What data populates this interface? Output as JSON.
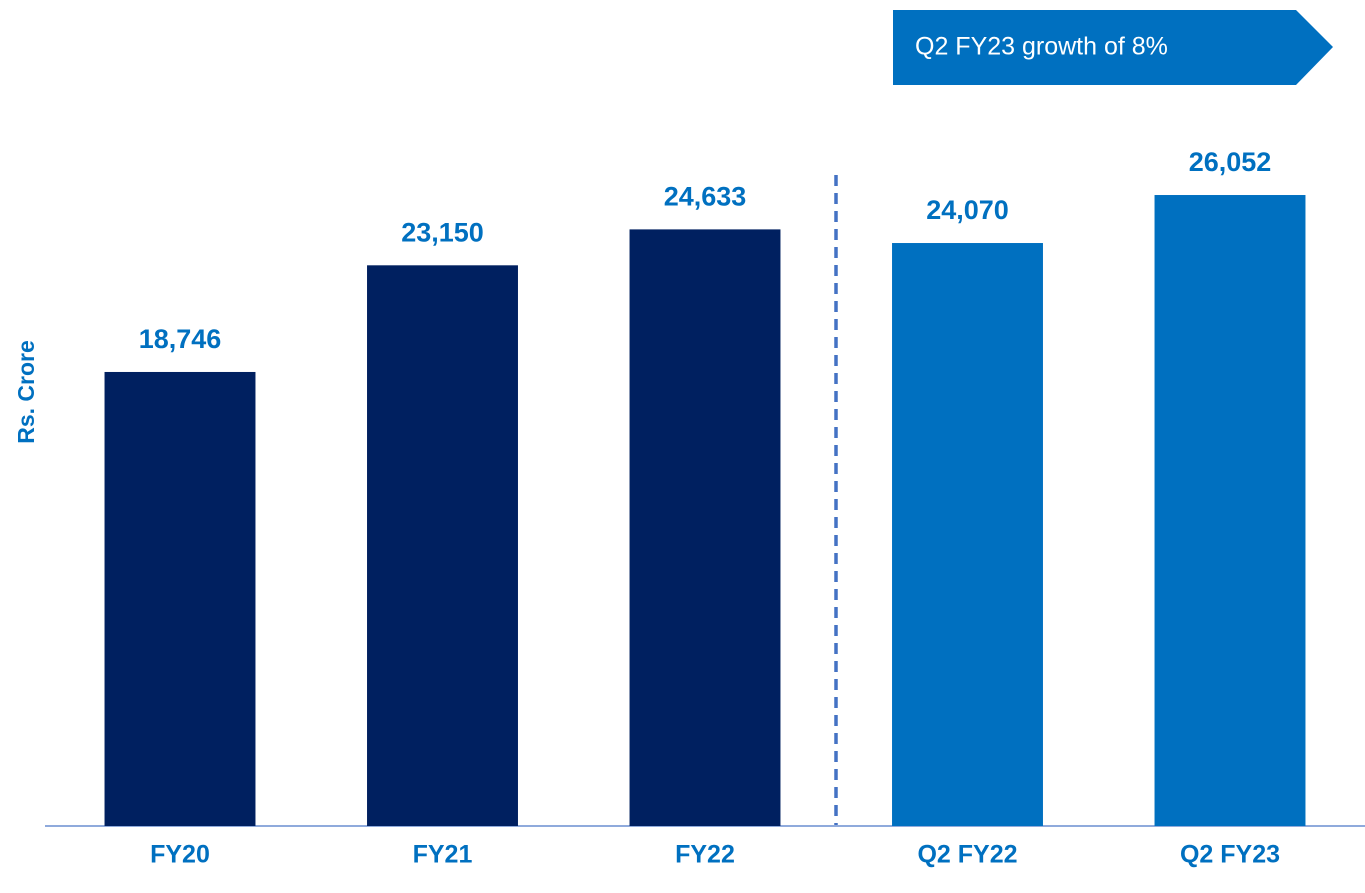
{
  "chart_data": {
    "type": "bar",
    "annotation": "Q2 FY23 growth of 8%",
    "ylabel": "Rs. Crore",
    "categories": [
      "FY20",
      "FY21",
      "FY22",
      "Q2 FY22",
      "Q2 FY23"
    ],
    "values": [
      18746,
      23150,
      24633,
      24070,
      26052
    ],
    "value_labels": [
      "18,746",
      "23,150",
      "24,633",
      "24,070",
      "26,052"
    ],
    "colors": [
      "#002060",
      "#002060",
      "#002060",
      "#0070c0",
      "#0070c0"
    ],
    "ylim": [
      0,
      30000
    ]
  }
}
